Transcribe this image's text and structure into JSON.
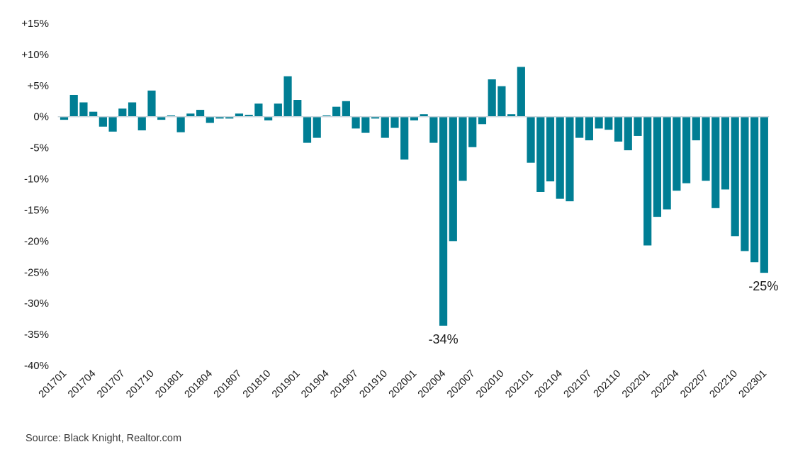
{
  "chart_data": {
    "type": "bar",
    "title": "",
    "xlabel": "",
    "ylabel": "",
    "ylim": [
      -40,
      15
    ],
    "y_ticks": [
      15,
      10,
      5,
      0,
      -5,
      -10,
      -15,
      -20,
      -25,
      -30,
      -35,
      -40
    ],
    "y_tick_labels": [
      "+15%",
      "+10%",
      "+5%",
      "0%",
      "-5%",
      "-10%",
      "-15%",
      "-20%",
      "-25%",
      "-30%",
      "-35%",
      "-40%"
    ],
    "grid": false,
    "legend": null,
    "bar_color": "#007E94",
    "zero_line_color": "#C8D6DC",
    "x_tick_every": 3,
    "categories": [
      "201701",
      "201702",
      "201703",
      "201704",
      "201705",
      "201706",
      "201707",
      "201708",
      "201709",
      "201710",
      "201711",
      "201712",
      "201801",
      "201802",
      "201803",
      "201804",
      "201805",
      "201806",
      "201807",
      "201808",
      "201809",
      "201810",
      "201811",
      "201812",
      "201901",
      "201902",
      "201903",
      "201904",
      "201905",
      "201906",
      "201907",
      "201908",
      "201909",
      "201910",
      "201911",
      "201912",
      "202001",
      "202002",
      "202003",
      "202004",
      "202005",
      "202006",
      "202007",
      "202008",
      "202009",
      "202010",
      "202011",
      "202012",
      "202101",
      "202102",
      "202103",
      "202104",
      "202105",
      "202106",
      "202107",
      "202108",
      "202109",
      "202110",
      "202111",
      "202112",
      "202201",
      "202202",
      "202203",
      "202204",
      "202205",
      "202206",
      "202207",
      "202208",
      "202209",
      "202210",
      "202211",
      "202212",
      "202301"
    ],
    "values": [
      -0.5,
      3.5,
      2.3,
      0.8,
      -1.6,
      -2.4,
      1.3,
      2.3,
      -2.2,
      4.2,
      -0.5,
      0.2,
      -2.5,
      0.5,
      1.1,
      -1.0,
      -0.3,
      -0.3,
      0.5,
      0.3,
      2.1,
      -0.6,
      2.1,
      6.5,
      2.7,
      -4.2,
      -3.4,
      0.2,
      1.6,
      2.5,
      -1.9,
      -2.6,
      -0.3,
      -3.4,
      -1.8,
      -6.9,
      -0.6,
      0.4,
      -4.2,
      -33.6,
      -20.0,
      -10.3,
      -4.9,
      -1.2,
      6.0,
      4.9,
      0.4,
      8.0,
      -7.4,
      -12.1,
      -10.4,
      -13.2,
      -13.6,
      -3.4,
      -3.8,
      -1.9,
      -2.1,
      -4.0,
      -5.4,
      -3.1,
      -20.7,
      -16.1,
      -14.9,
      -11.9,
      -10.7,
      -3.8,
      -10.3,
      -14.7,
      -11.7,
      -19.2,
      -21.6,
      -23.4,
      -25.1
    ],
    "annotations": [
      {
        "category": "202004",
        "text": "-34%"
      },
      {
        "category": "202301",
        "text": "-25%"
      }
    ]
  },
  "footer": {
    "source": "Source: Black Knight, Realtor.com"
  }
}
